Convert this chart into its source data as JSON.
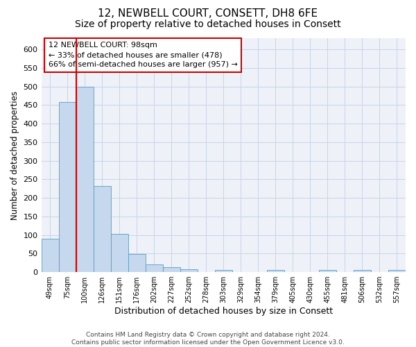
{
  "title": "12, NEWBELL COURT, CONSETT, DH8 6FE",
  "subtitle": "Size of property relative to detached houses in Consett",
  "xlabel": "Distribution of detached houses by size in Consett",
  "ylabel": "Number of detached properties",
  "bar_color": "#c5d8ed",
  "bar_edge_color": "#5a9bc4",
  "categories": [
    "49sqm",
    "75sqm",
    "100sqm",
    "126sqm",
    "151sqm",
    "176sqm",
    "202sqm",
    "227sqm",
    "252sqm",
    "278sqm",
    "303sqm",
    "329sqm",
    "354sqm",
    "379sqm",
    "405sqm",
    "430sqm",
    "455sqm",
    "481sqm",
    "506sqm",
    "532sqm",
    "557sqm"
  ],
  "values": [
    90,
    458,
    500,
    232,
    103,
    48,
    20,
    13,
    8,
    0,
    6,
    0,
    0,
    5,
    0,
    0,
    5,
    0,
    5,
    0,
    5
  ],
  "ylim": [
    0,
    630
  ],
  "yticks": [
    0,
    50,
    100,
    150,
    200,
    250,
    300,
    350,
    400,
    450,
    500,
    550,
    600
  ],
  "annotation_box_text": "12 NEWBELL COURT: 98sqm\n← 33% of detached houses are smaller (478)\n66% of semi-detached houses are larger (957) →",
  "red_line_x": 1.5,
  "red_line_color": "#cc0000",
  "background_color": "#eef2f8",
  "grid_color": "#c8d4e8",
  "footer_text": "Contains HM Land Registry data © Crown copyright and database right 2024.\nContains public sector information licensed under the Open Government Licence v3.0.",
  "title_fontsize": 11,
  "subtitle_fontsize": 10,
  "xlabel_fontsize": 9,
  "ylabel_fontsize": 8.5
}
